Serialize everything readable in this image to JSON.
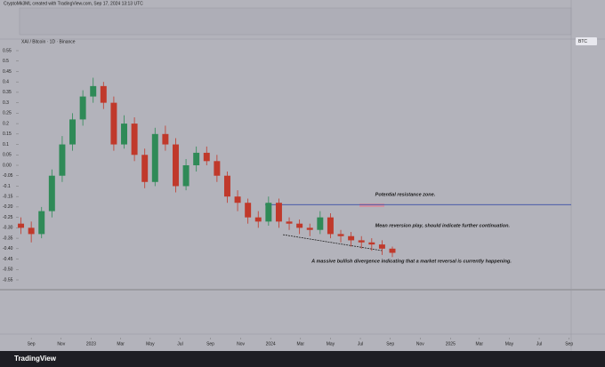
{
  "header": "CryptoMk3ML created with TradingView.com, Sep 17, 2024 13:13 UTC",
  "footer": "TradingView",
  "chart_data": {
    "type": "candlestick",
    "title": "XAI / Bitcoin · 1D · Binance",
    "currency": "BTC",
    "x": [
      -3,
      0,
      3,
      6,
      9,
      12,
      15,
      18,
      21,
      24,
      27,
      30,
      33,
      36,
      39,
      42,
      45,
      48,
      51,
      54,
      57,
      60,
      63,
      66,
      69,
      72,
      75,
      78,
      81,
      84,
      87,
      90,
      93,
      96,
      99,
      102,
      105
    ],
    "open": [
      -0.28,
      -0.3,
      -0.33,
      -0.22,
      -0.05,
      0.1,
      0.22,
      0.33,
      0.38,
      0.3,
      0.1,
      0.2,
      0.05,
      -0.08,
      0.15,
      0.1,
      -0.1,
      0.0,
      0.06,
      0.02,
      -0.05,
      -0.15,
      -0.18,
      -0.25,
      -0.27,
      -0.18,
      -0.27,
      -0.28,
      -0.3,
      -0.31,
      -0.25,
      -0.33,
      -0.34,
      -0.36,
      -0.37,
      -0.38,
      -0.4
    ],
    "high": [
      -0.25,
      -0.27,
      -0.2,
      -0.02,
      0.14,
      0.25,
      0.36,
      0.42,
      0.4,
      0.33,
      0.24,
      0.23,
      0.08,
      0.18,
      0.19,
      0.13,
      0.03,
      0.09,
      0.09,
      0.05,
      -0.03,
      -0.12,
      -0.16,
      -0.22,
      -0.15,
      -0.16,
      -0.25,
      -0.26,
      -0.28,
      -0.22,
      -0.23,
      -0.31,
      -0.32,
      -0.34,
      -0.35,
      -0.36,
      -0.39
    ],
    "low": [
      -0.33,
      -0.37,
      -0.35,
      -0.25,
      -0.08,
      0.07,
      0.19,
      0.3,
      0.27,
      0.07,
      0.08,
      0.02,
      -0.11,
      -0.1,
      0.07,
      -0.13,
      -0.12,
      -0.03,
      0.0,
      -0.08,
      -0.18,
      -0.22,
      -0.28,
      -0.3,
      -0.29,
      -0.3,
      -0.31,
      -0.33,
      -0.34,
      -0.33,
      -0.35,
      -0.37,
      -0.39,
      -0.4,
      -0.41,
      -0.43,
      -0.44
    ],
    "close": [
      -0.3,
      -0.33,
      -0.22,
      -0.05,
      0.1,
      0.22,
      0.33,
      0.38,
      0.3,
      0.1,
      0.2,
      0.05,
      -0.08,
      0.15,
      0.1,
      -0.1,
      0.0,
      0.06,
      0.02,
      -0.05,
      -0.15,
      -0.18,
      -0.25,
      -0.27,
      -0.18,
      -0.27,
      -0.28,
      -0.3,
      -0.31,
      -0.25,
      -0.33,
      -0.34,
      -0.36,
      -0.37,
      -0.38,
      -0.4,
      -0.42
    ],
    "up_color": "#2f8a57",
    "down_color": "#c0392b",
    "xlim": [
      -3.4,
      157
    ],
    "xticks": [
      {
        "value": 0,
        "label": "Sep"
      },
      {
        "value": 8.7,
        "label": "Nov"
      },
      {
        "value": 17.4,
        "label": "2023"
      },
      {
        "value": 26,
        "label": "Mar"
      },
      {
        "value": 34.6,
        "label": "May"
      },
      {
        "value": 43.3,
        "label": "Jul"
      },
      {
        "value": 52.1,
        "label": "Sep"
      },
      {
        "value": 60.9,
        "label": "Nov"
      },
      {
        "value": 69.6,
        "label": "2024"
      },
      {
        "value": 78.3,
        "label": "Mar"
      },
      {
        "value": 87,
        "label": "May"
      },
      {
        "value": 95.7,
        "label": "Jul"
      },
      {
        "value": 104.4,
        "label": "Sep"
      },
      {
        "value": 113.1,
        "label": "Nov"
      },
      {
        "value": 121.9,
        "label": "2025"
      },
      {
        "value": 130.3,
        "label": "Mar"
      },
      {
        "value": 139,
        "label": "May"
      },
      {
        "value": 147.7,
        "label": "Jul"
      },
      {
        "value": 156.4,
        "label": "Sep"
      }
    ],
    "ylim": [
      -0.55,
      0.55
    ],
    "yticks": [
      0.55,
      0.5,
      0.45,
      0.4,
      0.35,
      0.3,
      0.25,
      0.2,
      0.15,
      0.1,
      0.05,
      {
        "value": 0,
        "label": "0.00"
      },
      -0.05,
      -0.1,
      -0.15,
      {
        "value": -0.2,
        "label": "-0.20"
      },
      -0.25,
      {
        "value": -0.3,
        "label": "-0.30"
      },
      -0.35,
      {
        "value": -0.4,
        "label": "-0.40"
      },
      -0.45,
      {
        "value": -0.5,
        "label": "-0.50"
      },
      -0.55
    ],
    "resistance": -0.189,
    "resistance_color": "#3a4fa8",
    "divergence": {
      "x": [
        73.2,
        102.2
      ],
      "y": [
        -0.333,
        -0.41
      ]
    },
    "annotations": [
      {
        "text": "Potential resistance zone.",
        "x": 100,
        "y": -0.14
      },
      {
        "text": "Mean reversion play, should indicate further continuation.",
        "x": 100,
        "y": -0.29
      },
      {
        "text": "A massive bullish divergence indicating that a market reversal is currently happening.",
        "x": 81.5,
        "y": -0.46
      }
    ]
  }
}
